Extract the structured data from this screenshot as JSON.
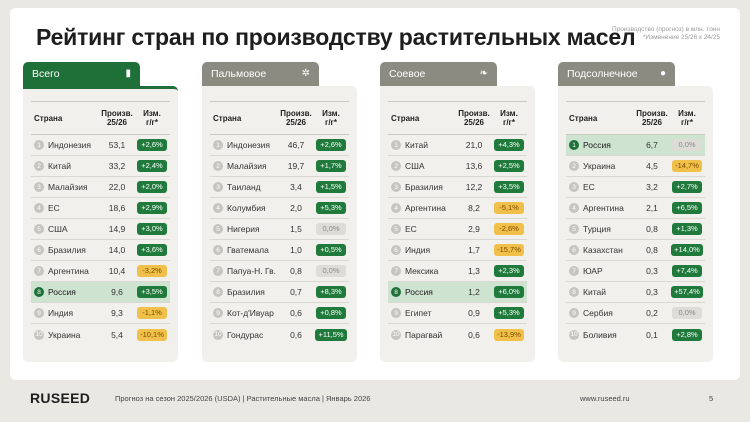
{
  "title": "Рейтинг стран по производству растительных масел",
  "note": {
    "line1": "Производство (прогноз) в млн. тонн",
    "line2": "*Изменение 25/26 к 24/25"
  },
  "columns": {
    "country": "Страна",
    "prod_line1": "Произв.",
    "prod_line2": "25/26",
    "chg_line1": "Изм.",
    "chg_line2": "г/г*"
  },
  "cards": [
    {
      "label": "Всего",
      "icon": "bottle-icon",
      "active": true,
      "rows": [
        {
          "rank": "1",
          "country": "Индонезия",
          "value": "53,1",
          "change": "+2,6%",
          "tone": "pos"
        },
        {
          "rank": "2",
          "country": "Китай",
          "value": "33,2",
          "change": "+2,4%",
          "tone": "pos"
        },
        {
          "rank": "3",
          "country": "Малайзия",
          "value": "22,0",
          "change": "+2,0%",
          "tone": "pos"
        },
        {
          "rank": "4",
          "country": "ЕС",
          "value": "18,6",
          "change": "+2,9%",
          "tone": "pos"
        },
        {
          "rank": "5",
          "country": "США",
          "value": "14,9",
          "change": "+3,0%",
          "tone": "pos"
        },
        {
          "rank": "6",
          "country": "Бразилия",
          "value": "14,0",
          "change": "+3,6%",
          "tone": "pos"
        },
        {
          "rank": "7",
          "country": "Аргентина",
          "value": "10,4",
          "change": "-3,2%",
          "tone": "neg"
        },
        {
          "rank": "8",
          "country": "Россия",
          "value": "9,6",
          "change": "+3,5%",
          "tone": "pos",
          "highlight": true
        },
        {
          "rank": "9",
          "country": "Индия",
          "value": "9,3",
          "change": "-1,1%",
          "tone": "neg"
        },
        {
          "rank": "10",
          "country": "Украина",
          "value": "5,4",
          "change": "-10,1%",
          "tone": "neg"
        }
      ]
    },
    {
      "label": "Пальмовое",
      "icon": "palm-icon",
      "active": false,
      "rows": [
        {
          "rank": "1",
          "country": "Индонезия",
          "value": "46,7",
          "change": "+2,6%",
          "tone": "pos"
        },
        {
          "rank": "2",
          "country": "Малайзия",
          "value": "19,7",
          "change": "+1,7%",
          "tone": "pos"
        },
        {
          "rank": "3",
          "country": "Таиланд",
          "value": "3,4",
          "change": "+1,5%",
          "tone": "pos"
        },
        {
          "rank": "4",
          "country": "Колумбия",
          "value": "2,0",
          "change": "+5,3%",
          "tone": "pos"
        },
        {
          "rank": "5",
          "country": "Нигерия",
          "value": "1,5",
          "change": "0,0%",
          "tone": "zero"
        },
        {
          "rank": "6",
          "country": "Гватемала",
          "value": "1,0",
          "change": "+0,5%",
          "tone": "pos"
        },
        {
          "rank": "7",
          "country": "Папуа-Н. Гв.",
          "value": "0,8",
          "change": "0,0%",
          "tone": "zero"
        },
        {
          "rank": "8",
          "country": "Бразилия",
          "value": "0,7",
          "change": "+8,3%",
          "tone": "pos"
        },
        {
          "rank": "9",
          "country": "Кот-д'Ивуар",
          "value": "0,6",
          "change": "+0,8%",
          "tone": "pos"
        },
        {
          "rank": "10",
          "country": "Гондурас",
          "value": "0,6",
          "change": "+11,5%",
          "tone": "pos"
        }
      ]
    },
    {
      "label": "Соевое",
      "icon": "soy-icon",
      "active": false,
      "rows": [
        {
          "rank": "1",
          "country": "Китай",
          "value": "21,0",
          "change": "+4,3%",
          "tone": "pos"
        },
        {
          "rank": "2",
          "country": "США",
          "value": "13,6",
          "change": "+2,5%",
          "tone": "pos"
        },
        {
          "rank": "3",
          "country": "Бразилия",
          "value": "12,2",
          "change": "+3,5%",
          "tone": "pos"
        },
        {
          "rank": "4",
          "country": "Аргентина",
          "value": "8,2",
          "change": "-5,1%",
          "tone": "neg"
        },
        {
          "rank": "5",
          "country": "ЕС",
          "value": "2,9",
          "change": "-2,6%",
          "tone": "neg"
        },
        {
          "rank": "6",
          "country": "Индия",
          "value": "1,7",
          "change": "-15,7%",
          "tone": "neg"
        },
        {
          "rank": "7",
          "country": "Мексика",
          "value": "1,3",
          "change": "+2,3%",
          "tone": "pos"
        },
        {
          "rank": "8",
          "country": "Россия",
          "value": "1,2",
          "change": "+6,0%",
          "tone": "pos",
          "highlight": true
        },
        {
          "rank": "9",
          "country": "Египет",
          "value": "0,9",
          "change": "+5,3%",
          "tone": "pos"
        },
        {
          "rank": "10",
          "country": "Парагвай",
          "value": "0,6",
          "change": "-13,9%",
          "tone": "neg"
        }
      ]
    },
    {
      "label": "Подсолнечное",
      "icon": "sunflower-icon",
      "active": false,
      "rows": [
        {
          "rank": "1",
          "country": "Россия",
          "value": "6,7",
          "change": "0,0%",
          "tone": "zero",
          "highlight": true
        },
        {
          "rank": "2",
          "country": "Украина",
          "value": "4,5",
          "change": "-14,7%",
          "tone": "neg"
        },
        {
          "rank": "3",
          "country": "ЕС",
          "value": "3,2",
          "change": "+2,7%",
          "tone": "pos"
        },
        {
          "rank": "4",
          "country": "Аргентина",
          "value": "2,1",
          "change": "+6,5%",
          "tone": "pos"
        },
        {
          "rank": "5",
          "country": "Турция",
          "value": "0,8",
          "change": "+1,3%",
          "tone": "pos"
        },
        {
          "rank": "6",
          "country": "Казахстан",
          "value": "0,8",
          "change": "+14,0%",
          "tone": "pos"
        },
        {
          "rank": "7",
          "country": "ЮАР",
          "value": "0,3",
          "change": "+7,4%",
          "tone": "pos"
        },
        {
          "rank": "8",
          "country": "Китай",
          "value": "0,3",
          "change": "+57,4%",
          "tone": "pos"
        },
        {
          "rank": "9",
          "country": "Сербия",
          "value": "0,2",
          "change": "0,0%",
          "tone": "zero"
        },
        {
          "rank": "10",
          "country": "Боливия",
          "value": "0,1",
          "change": "+2,8%",
          "tone": "pos"
        }
      ]
    }
  ],
  "footer": {
    "logo": "RUSEED",
    "text": "Прогноз на сезон 2025/2026 (USDA)  |  Растительные масла  |  Январь 2026",
    "url": "www.ruseed.ru",
    "page": "5"
  },
  "colors": {
    "brand_green": "#1f6f39",
    "positive": "#1f7a3c",
    "negative": "#f1c04a",
    "neutral": "#dddcd6",
    "highlight_row": "#cfe3d1"
  }
}
